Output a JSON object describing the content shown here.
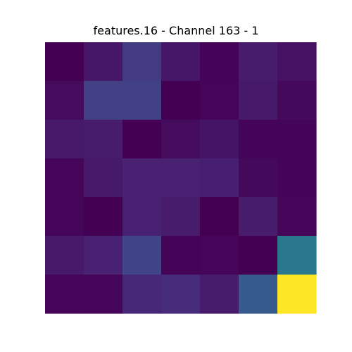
{
  "chart_data": {
    "type": "heatmap",
    "title": "features.16 - Channel 163 - 1",
    "xlabel": "",
    "ylabel": "",
    "rows": 7,
    "cols": 7,
    "colormap": "viridis",
    "axes_visible": false,
    "grid": false,
    "values": [
      [
        0.0,
        0.08,
        0.22,
        0.08,
        0.01,
        0.1,
        0.06
      ],
      [
        0.04,
        0.24,
        0.24,
        0.0,
        0.02,
        0.09,
        0.03
      ],
      [
        0.09,
        0.1,
        0.0,
        0.04,
        0.07,
        0.01,
        0.01
      ],
      [
        0.02,
        0.09,
        0.12,
        0.12,
        0.11,
        0.03,
        0.01
      ],
      [
        0.02,
        0.0,
        0.12,
        0.1,
        0.0,
        0.1,
        0.02
      ],
      [
        0.09,
        0.12,
        0.25,
        0.01,
        0.02,
        0.0,
        0.5
      ],
      [
        0.02,
        0.02,
        0.14,
        0.16,
        0.1,
        0.36,
        1.0
      ]
    ]
  }
}
